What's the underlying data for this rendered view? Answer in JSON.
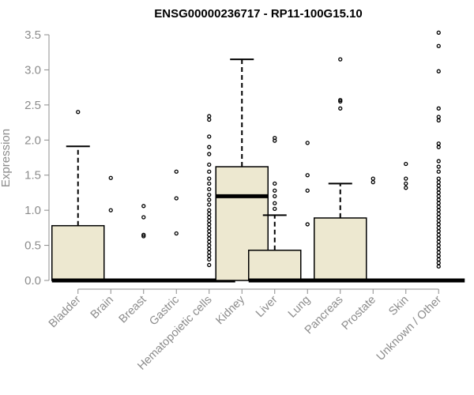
{
  "chart_data": {
    "type": "box",
    "title": "ENSG00000236717 - RP11-100G15.10",
    "ylabel": "Expression",
    "xlabel": "",
    "ylim": [
      0,
      3.5
    ],
    "yticks": [
      0.0,
      0.5,
      1.0,
      1.5,
      2.0,
      2.5,
      3.0,
      3.5
    ],
    "ytick_labels": [
      "0.0",
      "0.5",
      "1.0",
      "1.5",
      "2.0",
      "2.5",
      "3.0",
      "3.5"
    ],
    "grid": false,
    "box_fill": "#ede8d0",
    "categories": [
      "Bladder",
      "Brain",
      "Breast",
      "Gastric",
      "Hematopoietic cells",
      "Kidney",
      "Liver",
      "Lung",
      "Pancreas",
      "Prostate",
      "Skin",
      "Unknown / Other"
    ],
    "boxes": [
      {
        "q1": 0,
        "median": 0,
        "q3": 0.78,
        "whisker_low": 0,
        "whisker_high": 1.91,
        "outliers": [
          2.4
        ]
      },
      {
        "q1": 0,
        "median": 0,
        "q3": 0,
        "whisker_low": 0,
        "whisker_high": 0,
        "outliers": [
          1.46,
          1.0
        ]
      },
      {
        "q1": 0,
        "median": 0,
        "q3": 0,
        "whisker_low": 0,
        "whisker_high": 0,
        "outliers": [
          1.06,
          0.9,
          0.65,
          0.63
        ]
      },
      {
        "q1": 0,
        "median": 0,
        "q3": 0,
        "whisker_low": 0,
        "whisker_high": 0,
        "outliers": [
          1.55,
          1.17,
          0.67
        ]
      },
      {
        "q1": 0,
        "median": 0,
        "q3": 0,
        "whisker_low": 0,
        "whisker_high": 0,
        "outliers": [
          2.34,
          2.29,
          2.05,
          1.9,
          1.8,
          1.65,
          1.55,
          1.45,
          1.38,
          1.3,
          1.22,
          1.15,
          1.08,
          1.0,
          0.95,
          0.9,
          0.85,
          0.8,
          0.75,
          0.7,
          0.65,
          0.6,
          0.55,
          0.5,
          0.45,
          0.4,
          0.35,
          0.3,
          0.22
        ]
      },
      {
        "q1": 0,
        "median": 1.2,
        "q3": 1.62,
        "whisker_low": 0,
        "whisker_high": 3.15,
        "outliers": []
      },
      {
        "q1": 0,
        "median": 0,
        "q3": 0.43,
        "whisker_low": 0,
        "whisker_high": 0.93,
        "outliers": [
          2.03,
          1.99,
          1.38,
          1.28,
          1.2,
          1.1,
          1.02
        ]
      },
      {
        "q1": 0,
        "median": 0,
        "q3": 0,
        "whisker_low": 0,
        "whisker_high": 0,
        "outliers": [
          1.96,
          1.5,
          1.28,
          0.8
        ]
      },
      {
        "q1": 0,
        "median": 0,
        "q3": 0.89,
        "whisker_low": 0,
        "whisker_high": 1.38,
        "outliers": [
          3.15,
          2.57,
          2.55,
          2.45
        ]
      },
      {
        "q1": 0,
        "median": 0,
        "q3": 0,
        "whisker_low": 0,
        "whisker_high": 0,
        "outliers": [
          1.45,
          1.4
        ]
      },
      {
        "q1": 0,
        "median": 0,
        "q3": 0,
        "whisker_low": 0,
        "whisker_high": 0,
        "outliers": [
          1.66,
          1.45,
          1.38,
          1.32
        ]
      },
      {
        "q1": 0,
        "median": 0,
        "q3": 0,
        "whisker_low": 0,
        "whisker_high": 0,
        "outliers": [
          3.53,
          3.34,
          2.98,
          2.45,
          2.33,
          2.28,
          1.95,
          1.9,
          1.7,
          1.62,
          1.55,
          1.45,
          1.4,
          1.35,
          1.3,
          1.25,
          1.2,
          1.15,
          1.1,
          1.05,
          1.0,
          0.95,
          0.9,
          0.85,
          0.8,
          0.75,
          0.7,
          0.65,
          0.6,
          0.55,
          0.5,
          0.45,
          0.4,
          0.35,
          0.3,
          0.25,
          0.2
        ]
      }
    ]
  }
}
